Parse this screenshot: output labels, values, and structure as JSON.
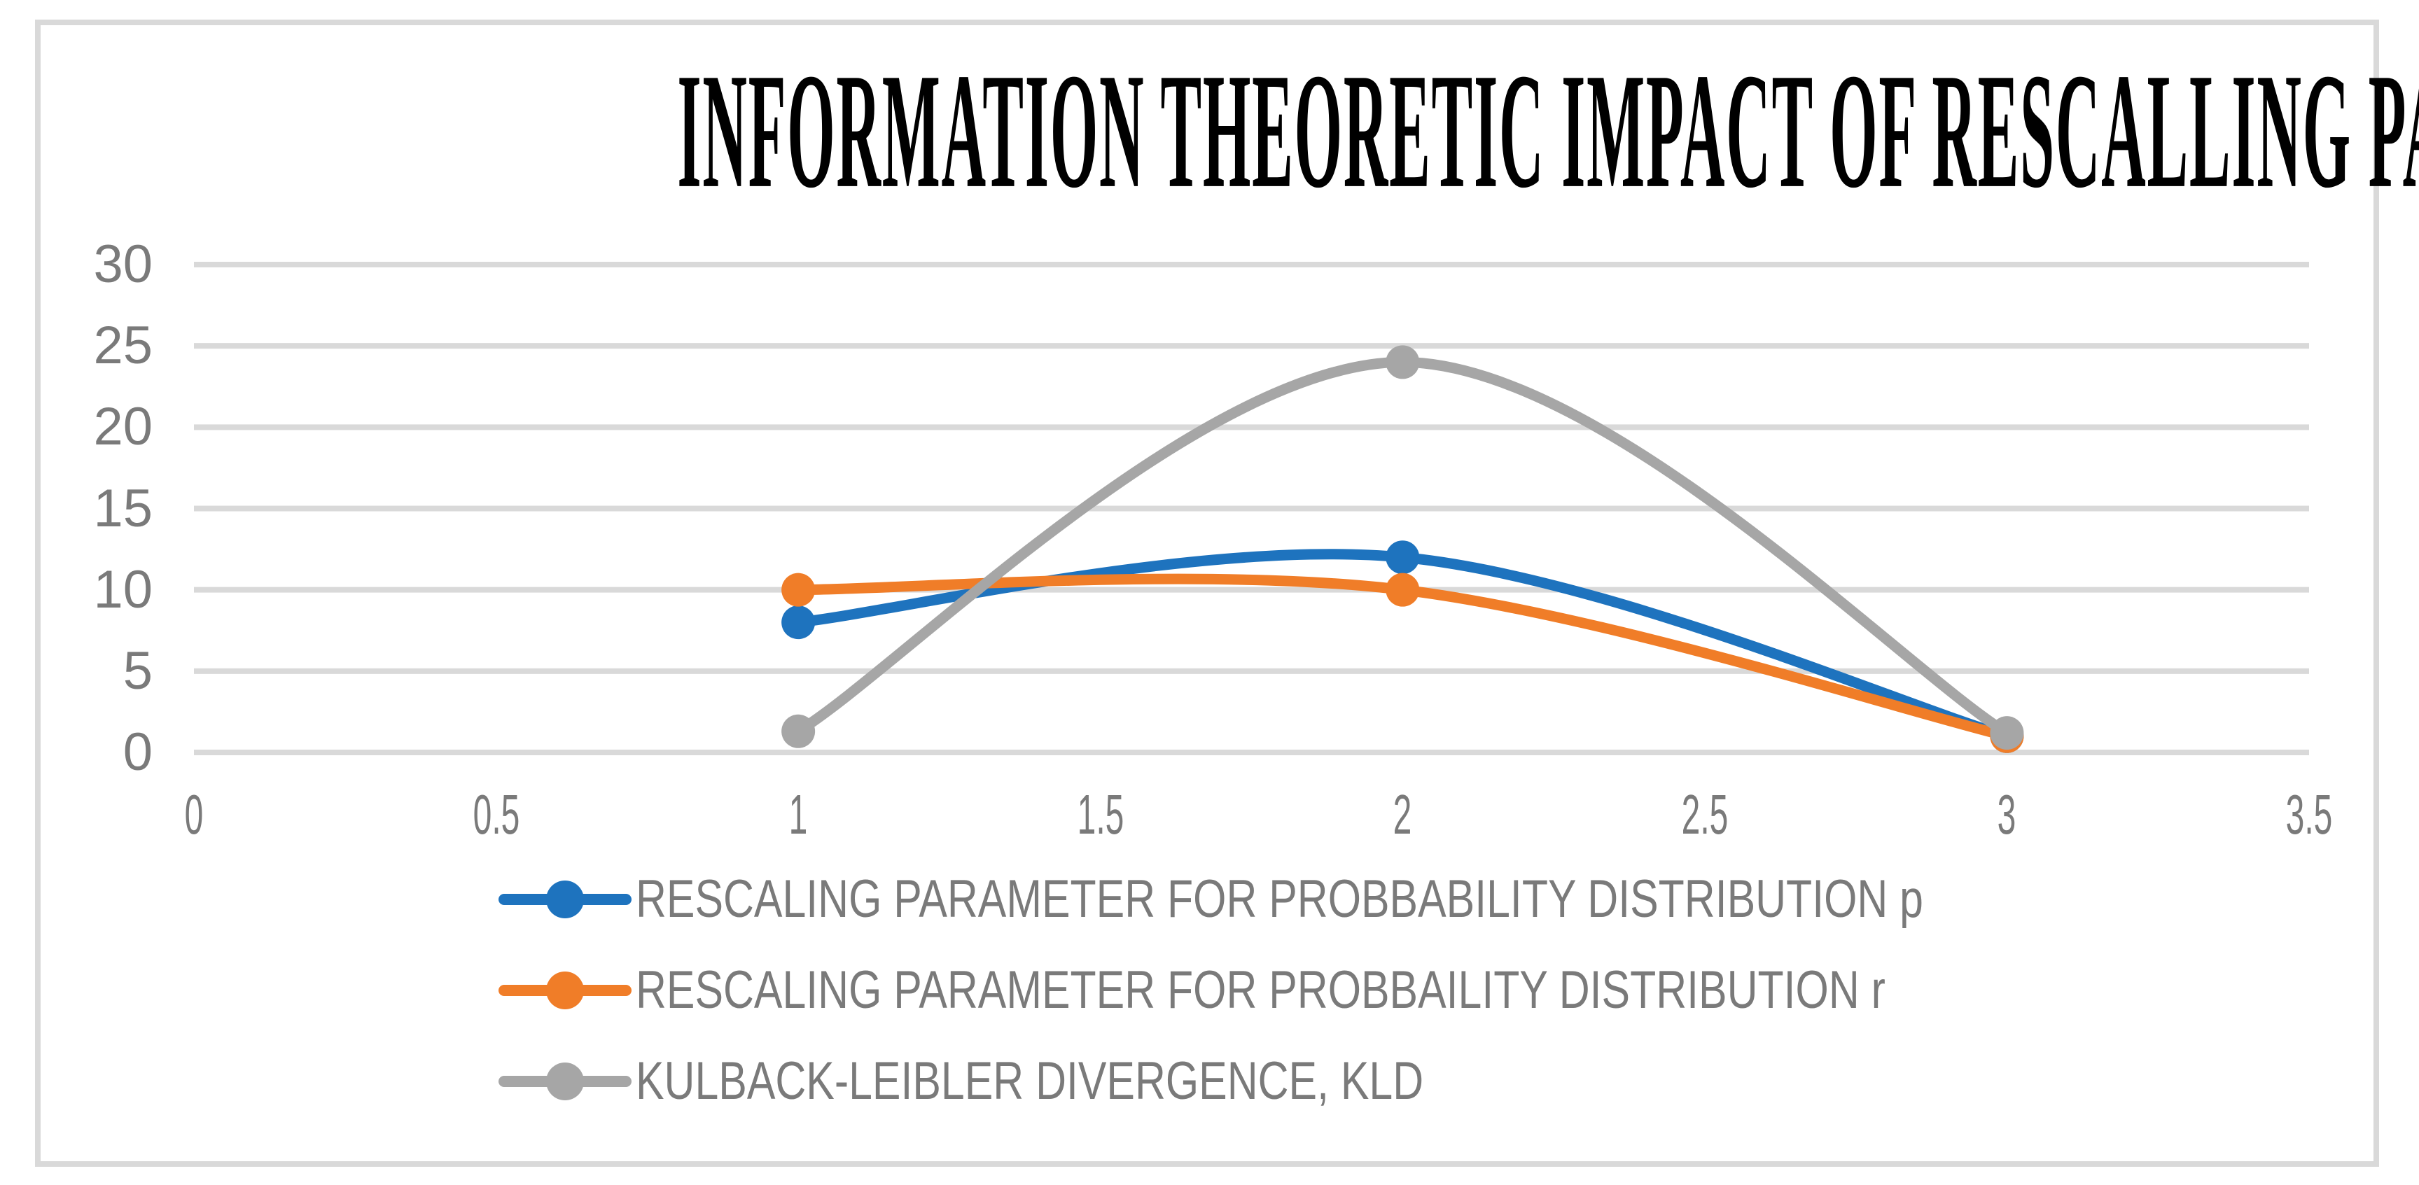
{
  "figure": {
    "title": "INFORMATION THEORETIC IMPACT OF RESCALLING PARAMETERS ON KLD"
  },
  "chart_data": {
    "type": "line",
    "title": "INFORMATION THEORETIC IMPACT OF RESCALLING PARAMETERS ON KLD",
    "xlabel": "",
    "ylabel": "",
    "xlim": [
      0,
      3.5
    ],
    "ylim": [
      0,
      30
    ],
    "x_tick_labels": [
      "0",
      "0.5",
      "1",
      "1.5",
      "2",
      "2.5",
      "3",
      "3.5"
    ],
    "y_tick_labels": [
      "30",
      "25",
      "20",
      "15",
      "10",
      "5",
      "0"
    ],
    "y_tick_values": [
      30,
      25,
      20,
      15,
      10,
      5,
      0
    ],
    "grid": "horizontal",
    "smooth": true,
    "markers": true,
    "legend_position": "bottom-left",
    "series": [
      {
        "name": "RESCALING PARAMETER FOR PROBBABILITY DISTRIBUTION p",
        "color": "#1E73BE",
        "x": [
          1,
          2,
          3
        ],
        "y": [
          8,
          12,
          1
        ]
      },
      {
        "name": "RESCALING PARAMETER FOR PROBBAILITY DISTRIBUTION r",
        "color": "#F07D28",
        "x": [
          1,
          2,
          3
        ],
        "y": [
          10,
          10,
          1
        ]
      },
      {
        "name": "KULBACK-LEIBLER DIVERGENCE, KLD",
        "color": "#A6A6A6",
        "x": [
          1,
          2,
          3
        ],
        "y": [
          1.3,
          24,
          1.2
        ]
      }
    ]
  },
  "colors": {
    "figure_border": "#D9D9D9",
    "gridline": "#D9D9D9",
    "tick_text": "#7A7A7A",
    "legend_text": "#7A7A7A",
    "title_text": "#000000"
  }
}
